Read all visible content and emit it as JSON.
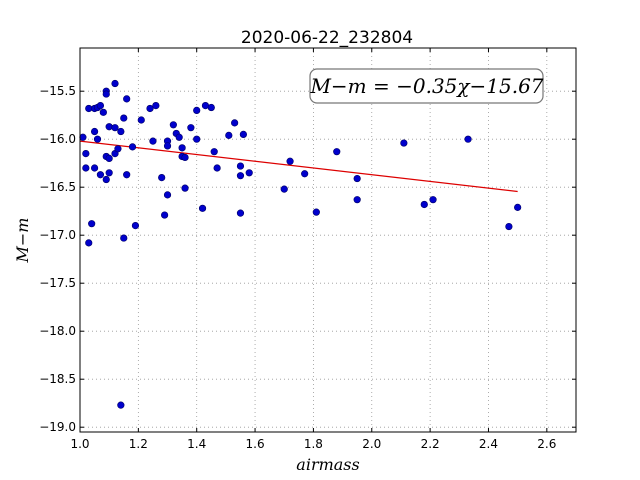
{
  "chart_data": {
    "type": "scatter",
    "title": "2020-06-22_232804",
    "xlabel": "airmass",
    "ylabel": "M−m",
    "xlim": [
      1.0,
      2.7
    ],
    "ylim": [
      -19.05,
      -15.05
    ],
    "xticks": [
      1.0,
      1.2,
      1.4,
      1.6,
      1.8,
      2.0,
      2.2,
      2.4,
      2.6
    ],
    "xtick_labels": [
      "1.0",
      "1.2",
      "1.4",
      "1.6",
      "1.8",
      "2.0",
      "2.2",
      "2.4",
      "2.6"
    ],
    "yticks": [
      -15.5,
      -16.0,
      -16.5,
      -17.0,
      -17.5,
      -18.0,
      -18.5,
      -19.0
    ],
    "ytick_labels": [
      "−15.5",
      "−16.0",
      "−16.5",
      "−17.0",
      "−17.5",
      "−18.0",
      "−18.5",
      "−19.0"
    ],
    "grid": true,
    "annotation": "M−m = −0.35χ−15.67",
    "annotation_location": "top-right",
    "colors": {
      "points": "#0000cc",
      "fit_line": "#dd0000",
      "grid": "#999999"
    },
    "fit": {
      "slope": -0.35,
      "intercept": -15.67,
      "x_range": [
        1.0,
        2.5
      ]
    },
    "points": [
      {
        "x": 1.01,
        "y": -15.98
      },
      {
        "x": 1.02,
        "y": -16.15
      },
      {
        "x": 1.02,
        "y": -16.3
      },
      {
        "x": 1.03,
        "y": -15.68
      },
      {
        "x": 1.03,
        "y": -17.08
      },
      {
        "x": 1.04,
        "y": -16.88
      },
      {
        "x": 1.05,
        "y": -16.3
      },
      {
        "x": 1.05,
        "y": -15.92
      },
      {
        "x": 1.05,
        "y": -15.68
      },
      {
        "x": 1.06,
        "y": -15.67
      },
      {
        "x": 1.06,
        "y": -16.0
      },
      {
        "x": 1.07,
        "y": -15.65
      },
      {
        "x": 1.07,
        "y": -16.37
      },
      {
        "x": 1.08,
        "y": -15.72
      },
      {
        "x": 1.09,
        "y": -15.5
      },
      {
        "x": 1.09,
        "y": -15.53
      },
      {
        "x": 1.09,
        "y": -16.18
      },
      {
        "x": 1.09,
        "y": -16.42
      },
      {
        "x": 1.1,
        "y": -16.2
      },
      {
        "x": 1.1,
        "y": -16.35
      },
      {
        "x": 1.1,
        "y": -15.87
      },
      {
        "x": 1.12,
        "y": -15.42
      },
      {
        "x": 1.12,
        "y": -16.15
      },
      {
        "x": 1.12,
        "y": -15.88
      },
      {
        "x": 1.13,
        "y": -16.1
      },
      {
        "x": 1.14,
        "y": -15.92
      },
      {
        "x": 1.14,
        "y": -18.77
      },
      {
        "x": 1.15,
        "y": -17.03
      },
      {
        "x": 1.15,
        "y": -15.78
      },
      {
        "x": 1.16,
        "y": -16.37
      },
      {
        "x": 1.16,
        "y": -15.58
      },
      {
        "x": 1.18,
        "y": -16.08
      },
      {
        "x": 1.19,
        "y": -16.9
      },
      {
        "x": 1.21,
        "y": -15.8
      },
      {
        "x": 1.24,
        "y": -15.68
      },
      {
        "x": 1.25,
        "y": -16.02
      },
      {
        "x": 1.26,
        "y": -15.65
      },
      {
        "x": 1.28,
        "y": -16.4
      },
      {
        "x": 1.29,
        "y": -16.79
      },
      {
        "x": 1.3,
        "y": -16.58
      },
      {
        "x": 1.3,
        "y": -16.02
      },
      {
        "x": 1.3,
        "y": -16.07
      },
      {
        "x": 1.32,
        "y": -15.85
      },
      {
        "x": 1.33,
        "y": -15.94
      },
      {
        "x": 1.34,
        "y": -15.98
      },
      {
        "x": 1.35,
        "y": -16.18
      },
      {
        "x": 1.35,
        "y": -16.09
      },
      {
        "x": 1.36,
        "y": -16.19
      },
      {
        "x": 1.36,
        "y": -16.51
      },
      {
        "x": 1.38,
        "y": -15.88
      },
      {
        "x": 1.4,
        "y": -15.7
      },
      {
        "x": 1.4,
        "y": -16.0
      },
      {
        "x": 1.42,
        "y": -16.72
      },
      {
        "x": 1.43,
        "y": -15.65
      },
      {
        "x": 1.45,
        "y": -15.67
      },
      {
        "x": 1.46,
        "y": -16.13
      },
      {
        "x": 1.47,
        "y": -16.3
      },
      {
        "x": 1.51,
        "y": -15.96
      },
      {
        "x": 1.53,
        "y": -15.83
      },
      {
        "x": 1.55,
        "y": -16.77
      },
      {
        "x": 1.55,
        "y": -16.28
      },
      {
        "x": 1.55,
        "y": -16.38
      },
      {
        "x": 1.56,
        "y": -15.95
      },
      {
        "x": 1.58,
        "y": -16.35
      },
      {
        "x": 1.7,
        "y": -16.52
      },
      {
        "x": 1.72,
        "y": -16.23
      },
      {
        "x": 1.77,
        "y": -16.36
      },
      {
        "x": 1.81,
        "y": -16.76
      },
      {
        "x": 1.88,
        "y": -16.13
      },
      {
        "x": 1.95,
        "y": -16.41
      },
      {
        "x": 1.95,
        "y": -16.63
      },
      {
        "x": 2.11,
        "y": -16.04
      },
      {
        "x": 2.18,
        "y": -16.68
      },
      {
        "x": 2.21,
        "y": -16.63
      },
      {
        "x": 2.33,
        "y": -16.0
      },
      {
        "x": 2.47,
        "y": -16.91
      },
      {
        "x": 2.5,
        "y": -16.71
      }
    ]
  }
}
